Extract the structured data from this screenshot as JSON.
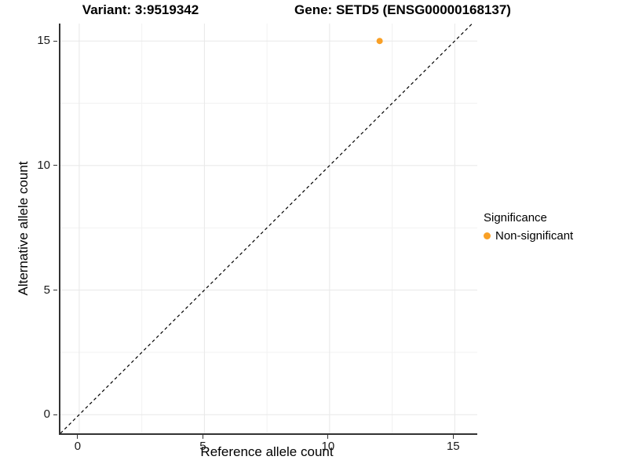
{
  "titles": {
    "variant": "Variant: 3:9519342",
    "gene": "Gene: SETD5 (ENSG00000168137)"
  },
  "axes": {
    "x_label": "Reference allele count",
    "y_label": "Alternative allele count"
  },
  "legend": {
    "title": "Significance",
    "items": [
      {
        "label": "Non-significant",
        "color": "#F9A026"
      }
    ]
  },
  "colors": {
    "point": "#F9A026",
    "major_grid": "#E8E8E8",
    "minor_grid": "#F2F2F2",
    "axis_line": "#333333",
    "identity_line": "#000000",
    "background": "#FFFFFF"
  },
  "chart_data": {
    "type": "scatter",
    "title": "Variant: 3:9519342   Gene: SETD5 (ENSG00000168137)",
    "xlabel": "Reference allele count",
    "ylabel": "Alternative allele count",
    "xlim": [
      -0.75,
      15.9
    ],
    "ylim": [
      -0.75,
      15.7
    ],
    "x_ticks": [
      0,
      5,
      10,
      15
    ],
    "y_ticks": [
      0,
      5,
      10,
      15
    ],
    "x_minor_ticks": [
      2.5,
      7.5,
      12.5
    ],
    "y_minor_ticks": [
      2.5,
      7.5,
      12.5
    ],
    "grid": true,
    "legend_position": "right",
    "series": [
      {
        "name": "Non-significant",
        "color": "#F9A026",
        "points": [
          {
            "x": 12,
            "y": 15
          }
        ]
      }
    ],
    "reference_line": {
      "type": "identity",
      "style": "dashed",
      "equation": "y = x"
    }
  }
}
